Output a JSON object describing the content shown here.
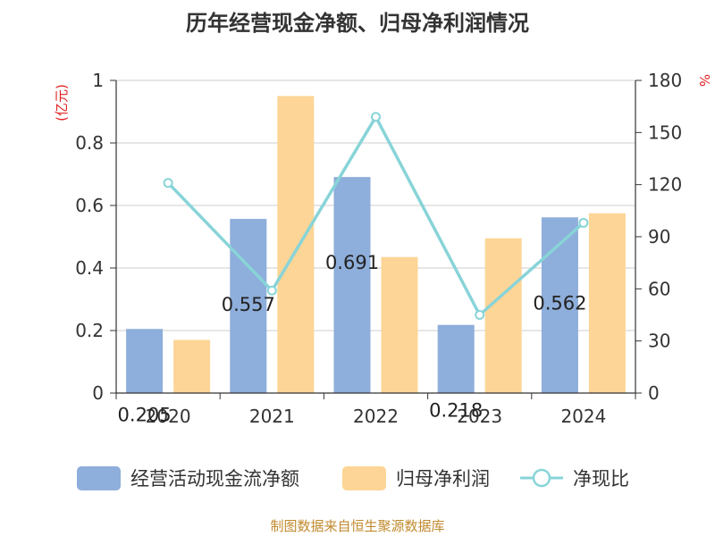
{
  "chart_data": {
    "type": "bar",
    "title": "历年经营现金净额、归母净利润情况",
    "categories": [
      "2020",
      "2021",
      "2022",
      "2023",
      "2024"
    ],
    "series": [
      {
        "name": "经营活动现金流净额",
        "type": "bar",
        "axis": "left",
        "color": "#8eaedb",
        "values": [
          0.205,
          0.557,
          0.691,
          0.218,
          0.562
        ],
        "labels": [
          "0.205",
          "0.557",
          "0.691",
          "0.218",
          "0.562"
        ]
      },
      {
        "name": "归母净利润",
        "type": "bar",
        "axis": "left",
        "color": "#fdd596",
        "values": [
          0.17,
          0.95,
          0.435,
          0.495,
          0.575
        ]
      },
      {
        "name": "净现比",
        "type": "line",
        "axis": "right",
        "color": "#88d4d8",
        "values": [
          121,
          59,
          159,
          45,
          98
        ]
      }
    ],
    "ylabel": "(亿元)",
    "ylim": [
      0,
      1
    ],
    "yticks": [
      "0",
      "0.2",
      "0.4",
      "0.6",
      "0.8",
      "1"
    ],
    "y2label": "%",
    "y2lim": [
      0,
      180
    ],
    "y2ticks": [
      "0",
      "30",
      "60",
      "90",
      "120",
      "150",
      "180"
    ],
    "grid": true,
    "legend": "bottom"
  },
  "source_text": "制图数据来自恒生聚源数据库"
}
